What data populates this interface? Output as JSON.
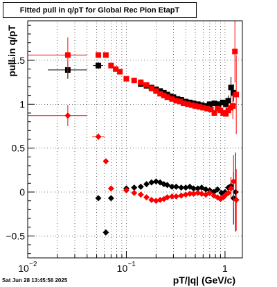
{
  "title": "Fitted pull in q/pT for Global Rec Pion EtapT",
  "timestamp": "Sat Jun 28 13:45:56 2025",
  "chart_data": {
    "type": "scatter",
    "title": "Fitted pull in q/pT for Global Rec Pion EtapT",
    "xlabel": "pT/|q| (GeV/c)",
    "ylabel": "pull in q/pT",
    "xscale": "log",
    "xlim": [
      0.01,
      1.5
    ],
    "ylim": [
      -0.75,
      1.95
    ],
    "grid": true,
    "x_tick_labels": [
      {
        "value": 0.01,
        "label": "10",
        "exp": "−2"
      },
      {
        "value": 0.1,
        "label": "10",
        "exp": "−1"
      },
      {
        "value": 1,
        "label": "1",
        "exp": ""
      }
    ],
    "y_ticks": [
      {
        "value": -0.5,
        "label": "−0.5"
      },
      {
        "value": 0,
        "label": "0"
      },
      {
        "value": 0.5,
        "label": "0.5"
      },
      {
        "value": 1,
        "label": "1"
      },
      {
        "value": 1.5,
        "label": "1.5"
      }
    ],
    "series": [
      {
        "color": "#000000",
        "marker": "square",
        "points": [
          {
            "x": 0.0255,
            "y": 1.39,
            "xerr": [
              0.016,
              0.04
            ],
            "yerr": 0.1
          },
          {
            "x": 0.052,
            "y": 1.44,
            "xerr": [
              0.046,
              0.058
            ],
            "yerr": 0.04
          },
          {
            "x": 0.14,
            "y": 1.23
          },
          {
            "x": 0.16,
            "y": 1.21
          },
          {
            "x": 0.18,
            "y": 1.19
          },
          {
            "x": 0.2,
            "y": 1.17
          },
          {
            "x": 0.22,
            "y": 1.15
          },
          {
            "x": 0.24,
            "y": 1.13
          },
          {
            "x": 0.26,
            "y": 1.11
          },
          {
            "x": 0.28,
            "y": 1.09
          },
          {
            "x": 0.3,
            "y": 1.08
          },
          {
            "x": 0.33,
            "y": 1.06
          },
          {
            "x": 0.36,
            "y": 1.05
          },
          {
            "x": 0.4,
            "y": 1.03
          },
          {
            "x": 0.44,
            "y": 1.02
          },
          {
            "x": 0.48,
            "y": 1.01
          },
          {
            "x": 0.53,
            "y": 1.0
          },
          {
            "x": 0.58,
            "y": 0.99
          },
          {
            "x": 0.64,
            "y": 0.98
          },
          {
            "x": 0.7,
            "y": 1.0
          },
          {
            "x": 0.78,
            "y": 1.01
          },
          {
            "x": 0.86,
            "y": 1.0
          },
          {
            "x": 0.95,
            "y": 1.02
          },
          {
            "x": 1.02,
            "y": 1.0
          },
          {
            "x": 1.08,
            "y": 1.04,
            "yerr": 0.06
          },
          {
            "x": 1.15,
            "y": 1.19,
            "yerr": 0.12
          },
          {
            "x": 1.22,
            "y": 1.13,
            "yerr": 0.1
          }
        ]
      },
      {
        "color": "#ff0000",
        "marker": "square",
        "points": [
          {
            "x": 0.0255,
            "y": 1.56,
            "xerr": [
              0.01,
              0.04
            ],
            "yerr": 0.2
          },
          {
            "x": 0.052,
            "y": 1.56
          },
          {
            "x": 0.062,
            "y": 1.56
          },
          {
            "x": 0.07,
            "y": 1.44
          },
          {
            "x": 0.078,
            "y": 1.4
          },
          {
            "x": 0.086,
            "y": 1.37
          },
          {
            "x": 0.1,
            "y": 1.29
          },
          {
            "x": 0.12,
            "y": 1.27
          },
          {
            "x": 0.14,
            "y": 1.25
          },
          {
            "x": 0.16,
            "y": 1.22
          },
          {
            "x": 0.18,
            "y": 1.18
          },
          {
            "x": 0.2,
            "y": 1.15
          },
          {
            "x": 0.22,
            "y": 1.12
          },
          {
            "x": 0.24,
            "y": 1.1
          },
          {
            "x": 0.26,
            "y": 1.08
          },
          {
            "x": 0.29,
            "y": 1.06
          },
          {
            "x": 0.32,
            "y": 1.04
          },
          {
            "x": 0.35,
            "y": 1.03
          },
          {
            "x": 0.38,
            "y": 1.01
          },
          {
            "x": 0.42,
            "y": 1.0
          },
          {
            "x": 0.46,
            "y": 0.99
          },
          {
            "x": 0.5,
            "y": 0.98
          },
          {
            "x": 0.55,
            "y": 0.97
          },
          {
            "x": 0.6,
            "y": 0.96
          },
          {
            "x": 0.66,
            "y": 0.95
          },
          {
            "x": 0.72,
            "y": 0.94
          },
          {
            "x": 0.78,
            "y": 0.9
          },
          {
            "x": 0.84,
            "y": 0.95
          },
          {
            "x": 0.9,
            "y": 0.93
          },
          {
            "x": 0.96,
            "y": 0.9
          },
          {
            "x": 1.02,
            "y": 0.89
          },
          {
            "x": 1.08,
            "y": 0.93
          },
          {
            "x": 1.14,
            "y": 0.96
          },
          {
            "x": 1.2,
            "y": 0.98,
            "yerr": 0.15
          },
          {
            "x": 1.26,
            "y": 1.6,
            "yerr": 0.35
          },
          {
            "x": 1.3,
            "y": 1.11,
            "yerr": 0.45
          }
        ]
      },
      {
        "color": "#000000",
        "marker": "diamond",
        "points": [
          {
            "x": 0.052,
            "y": -0.07
          },
          {
            "x": 0.062,
            "y": -0.46
          },
          {
            "x": 0.07,
            "y": -0.07
          },
          {
            "x": 0.1,
            "y": 0.04
          },
          {
            "x": 0.12,
            "y": 0.05
          },
          {
            "x": 0.14,
            "y": 0.06
          },
          {
            "x": 0.16,
            "y": 0.09
          },
          {
            "x": 0.18,
            "y": 0.11
          },
          {
            "x": 0.2,
            "y": 0.12
          },
          {
            "x": 0.22,
            "y": 0.11
          },
          {
            "x": 0.24,
            "y": 0.09
          },
          {
            "x": 0.26,
            "y": 0.08
          },
          {
            "x": 0.29,
            "y": 0.06
          },
          {
            "x": 0.32,
            "y": 0.06
          },
          {
            "x": 0.36,
            "y": 0.05
          },
          {
            "x": 0.4,
            "y": 0.05
          },
          {
            "x": 0.44,
            "y": 0.06
          },
          {
            "x": 0.48,
            "y": 0.04
          },
          {
            "x": 0.53,
            "y": 0.04
          },
          {
            "x": 0.58,
            "y": 0.05
          },
          {
            "x": 0.64,
            "y": 0.03
          },
          {
            "x": 0.7,
            "y": 0.02
          },
          {
            "x": 0.77,
            "y": 0.0
          },
          {
            "x": 0.84,
            "y": 0.03
          },
          {
            "x": 0.92,
            "y": -0.01
          },
          {
            "x": 1.0,
            "y": 0.0
          },
          {
            "x": 1.08,
            "y": 0.05
          },
          {
            "x": 1.15,
            "y": 0.07,
            "yerr": 0.1
          },
          {
            "x": 1.22,
            "y": -0.07,
            "yerr": 0.3
          },
          {
            "x": 1.28,
            "y": 0.0,
            "yerr": 0.45
          }
        ]
      },
      {
        "color": "#ff0000",
        "marker": "diamond",
        "points": [
          {
            "x": 0.0255,
            "y": 0.87,
            "xerr": [
              0.01,
              0.04
            ],
            "yerr": 0.12
          },
          {
            "x": 0.052,
            "y": 0.63,
            "xerr": [
              0.045,
              0.06
            ],
            "yerr": 0.04
          },
          {
            "x": 0.062,
            "y": 0.35
          },
          {
            "x": 0.07,
            "y": 0.04
          },
          {
            "x": 0.1,
            "y": 0.02
          },
          {
            "x": 0.12,
            "y": -0.01
          },
          {
            "x": 0.14,
            "y": -0.03
          },
          {
            "x": 0.16,
            "y": -0.06
          },
          {
            "x": 0.18,
            "y": -0.09
          },
          {
            "x": 0.2,
            "y": -0.1
          },
          {
            "x": 0.22,
            "y": -0.09
          },
          {
            "x": 0.24,
            "y": -0.08
          },
          {
            "x": 0.26,
            "y": -0.06
          },
          {
            "x": 0.29,
            "y": -0.05
          },
          {
            "x": 0.32,
            "y": -0.05
          },
          {
            "x": 0.36,
            "y": -0.04
          },
          {
            "x": 0.4,
            "y": -0.03
          },
          {
            "x": 0.44,
            "y": -0.02
          },
          {
            "x": 0.48,
            "y": -0.02
          },
          {
            "x": 0.53,
            "y": -0.01
          },
          {
            "x": 0.58,
            "y": -0.02
          },
          {
            "x": 0.64,
            "y": -0.03
          },
          {
            "x": 0.7,
            "y": -0.01
          },
          {
            "x": 0.77,
            "y": -0.04
          },
          {
            "x": 0.84,
            "y": -0.06
          },
          {
            "x": 0.9,
            "y": -0.08
          },
          {
            "x": 0.96,
            "y": -0.06
          },
          {
            "x": 1.02,
            "y": -0.03
          },
          {
            "x": 1.08,
            "y": -0.01
          },
          {
            "x": 1.15,
            "y": 0.04,
            "yerr": 0.12
          },
          {
            "x": 1.22,
            "y": 0.12,
            "yerr": 0.3
          },
          {
            "x": 1.3,
            "y": -0.09,
            "yerr": 0.35
          }
        ]
      }
    ]
  }
}
